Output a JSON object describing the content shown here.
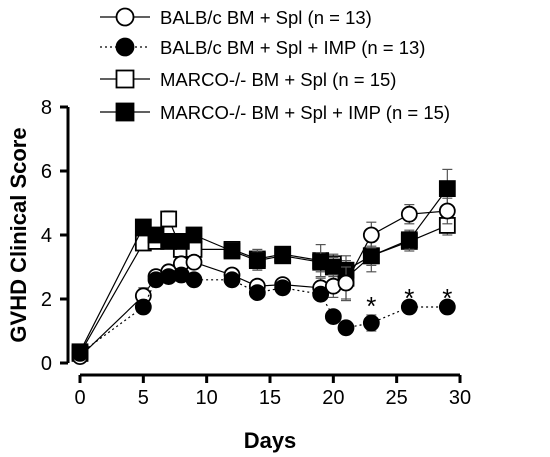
{
  "chart_data": {
    "type": "line",
    "xlabel": "Days",
    "ylabel": "GVHD Clinical Score",
    "xlim": [
      0,
      30
    ],
    "ylim": [
      0,
      8
    ],
    "xticks": [
      "0",
      "5",
      "10",
      "15",
      "20",
      "25",
      "30"
    ],
    "yticks": [
      "0",
      "2",
      "4",
      "6",
      "8"
    ],
    "legend_position": "top",
    "series": [
      {
        "name": "BALB/c BM + Spl (n = 13)",
        "marker": "circle",
        "fill": "open",
        "line": "solid",
        "x": [
          0,
          5,
          6,
          7,
          8,
          9,
          12,
          14,
          16,
          19,
          20,
          21,
          23,
          26,
          29
        ],
        "y": [
          0.2,
          2.1,
          2.7,
          2.85,
          3.1,
          3.15,
          2.75,
          2.4,
          2.45,
          2.35,
          2.4,
          2.5,
          4.0,
          4.65,
          4.75
        ],
        "err": [
          0.05,
          0.25,
          0.2,
          0.2,
          0.2,
          0.2,
          0.2,
          0.2,
          0.15,
          0.3,
          0.35,
          0.5,
          0.4,
          0.3,
          0.4
        ]
      },
      {
        "name": "BALB/c BM + Spl + IMP (n = 13)",
        "marker": "circle",
        "fill": "filled",
        "line": "dotted",
        "x": [
          0,
          5,
          6,
          7,
          8,
          9,
          12,
          14,
          16,
          19,
          20,
          21,
          23,
          26,
          29
        ],
        "y": [
          0.3,
          1.75,
          2.6,
          2.7,
          2.75,
          2.6,
          2.6,
          2.2,
          2.35,
          2.15,
          1.45,
          1.1,
          1.25,
          1.75,
          1.75
        ],
        "err": [
          0.05,
          0.15,
          0.15,
          0.15,
          0.15,
          0.15,
          0.15,
          0.15,
          0.15,
          0.15,
          0.15,
          0.15,
          0.25,
          0.1,
          0.1
        ]
      },
      {
        "name": "MARCO-/- BM + Spl (n = 15)",
        "marker": "square",
        "fill": "open",
        "line": "solid",
        "x": [
          0,
          5,
          6,
          7,
          8,
          9,
          12,
          14,
          16,
          19,
          20,
          21,
          23,
          26,
          29
        ],
        "y": [
          0.3,
          3.75,
          3.8,
          4.5,
          3.55,
          3.55,
          3.55,
          3.25,
          3.4,
          3.2,
          3.1,
          2.65,
          3.35,
          3.8,
          4.3
        ],
        "err": [
          0.05,
          0.2,
          0.2,
          0.25,
          0.3,
          0.3,
          0.2,
          0.3,
          0.2,
          0.5,
          0.3,
          0.7,
          0.5,
          0.3,
          0.3
        ]
      },
      {
        "name": "MARCO-/- BM + Spl + IMP (n = 15)",
        "marker": "square",
        "fill": "filled",
        "line": "solid",
        "x": [
          0,
          5,
          6,
          7,
          8,
          9,
          12,
          14,
          16,
          19,
          20,
          21,
          23,
          26,
          29
        ],
        "y": [
          0.35,
          4.25,
          4.0,
          3.8,
          3.8,
          4.0,
          3.5,
          3.2,
          3.35,
          3.15,
          3.0,
          2.9,
          3.35,
          3.85,
          5.45
        ],
        "err": [
          0.05,
          0.2,
          0.2,
          0.2,
          0.2,
          0.2,
          0.2,
          0.3,
          0.2,
          0.3,
          0.3,
          0.3,
          0.3,
          0.3,
          0.6
        ]
      }
    ],
    "annotations": [
      {
        "text": "*",
        "x": 23,
        "y": 2.0
      },
      {
        "text": "*",
        "x": 26,
        "y": 2.25
      },
      {
        "text": "*",
        "x": 29,
        "y": 2.25
      }
    ]
  }
}
